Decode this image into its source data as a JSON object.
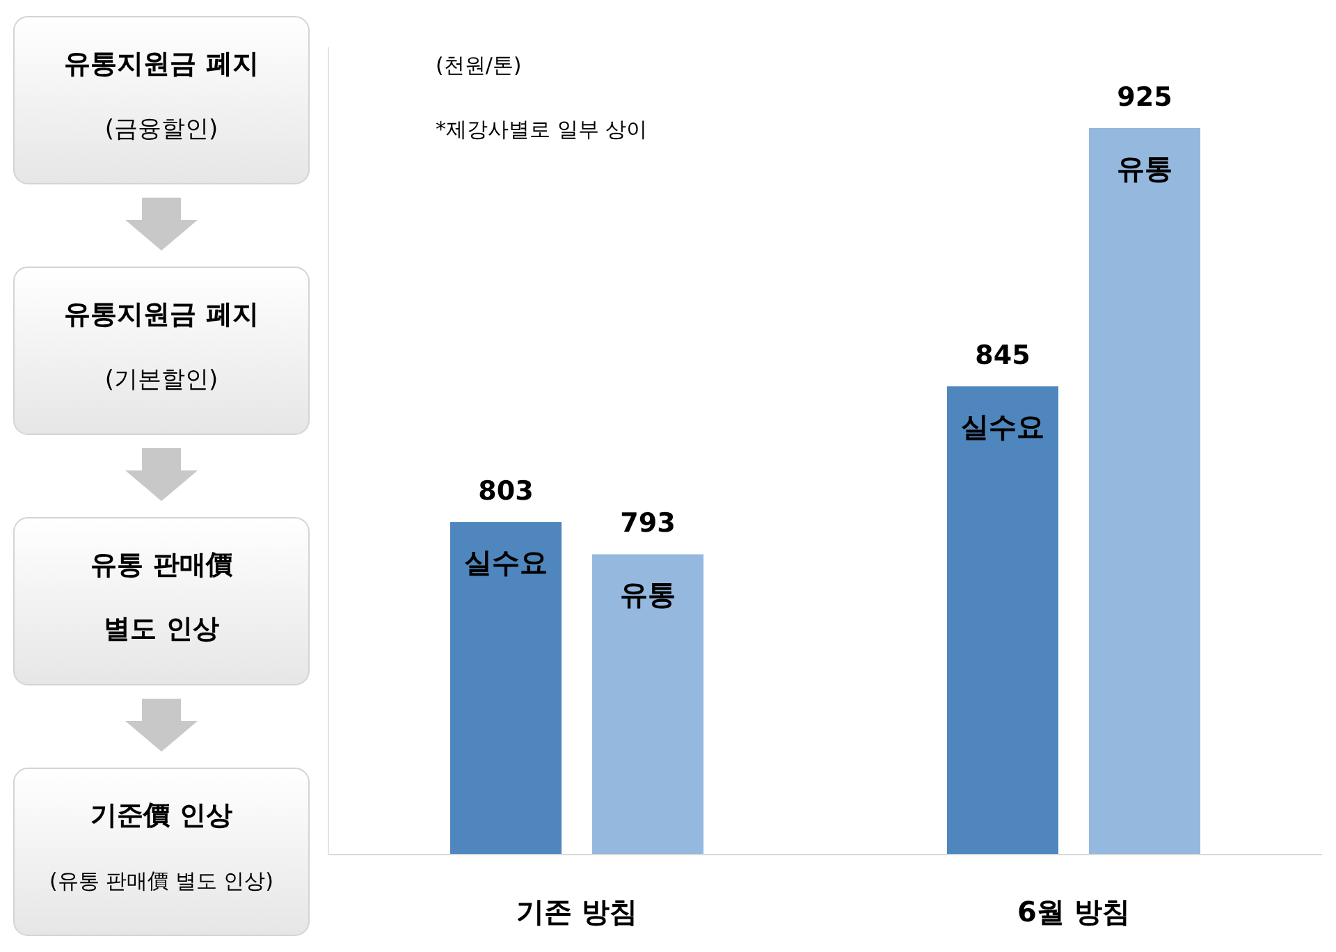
{
  "chart_data": [
    {
      "type": "other",
      "annotations": [
        "유통지원금 폐지\n(금융할인)",
        "유통지원금 폐지\n(기본할인)",
        "유통 판매價\n별도 인상",
        "기준價 인상\n(유통 판매價 별도 인상)"
      ]
    },
    {
      "type": "bar",
      "categories": [
        "기존 방침",
        "6월 방침"
      ],
      "series": [
        {
          "name": "실수요",
          "color": "#4f86bd",
          "values": [
            803,
            845
          ]
        },
        {
          "name": "유통",
          "color": "#95b8de",
          "values": [
            793,
            925
          ]
        }
      ],
      "ylim": [
        700,
        950
      ],
      "tick_labels": "x",
      "data_labels": true,
      "annotations": [
        "(천원/톤)",
        "*제강사별로 일부 상이"
      ]
    }
  ]
}
